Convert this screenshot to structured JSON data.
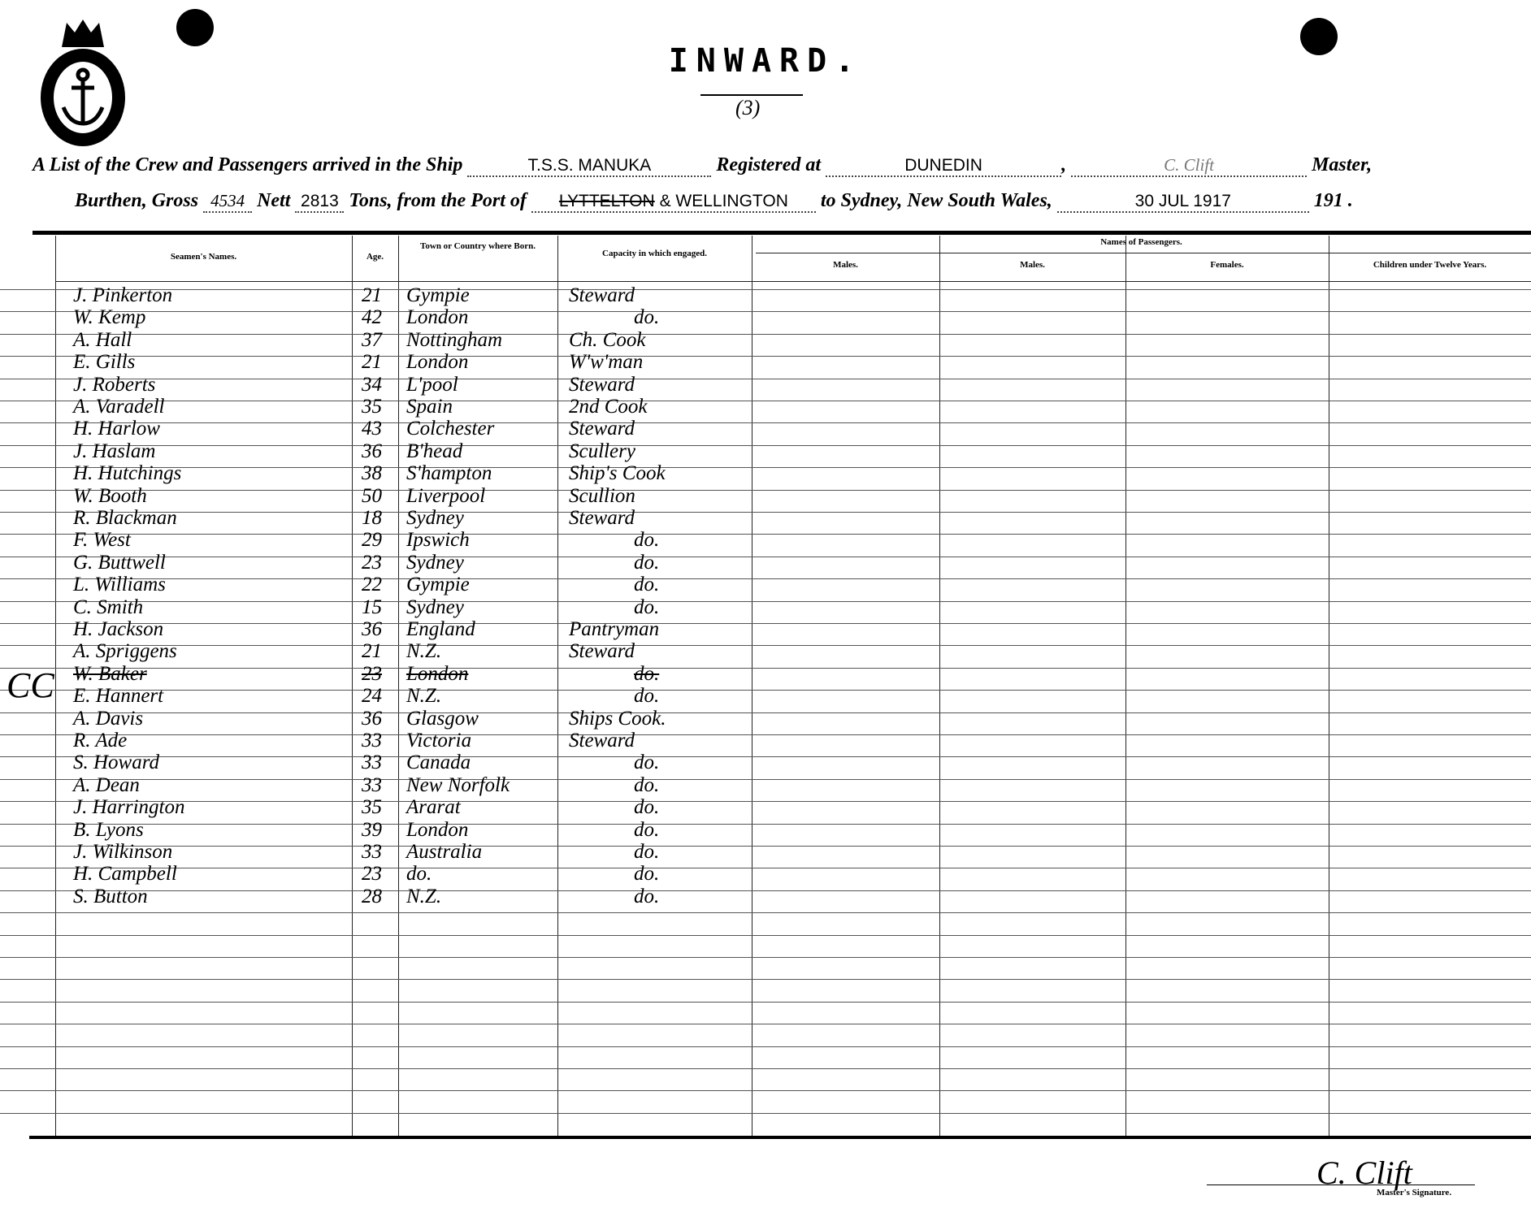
{
  "header": {
    "title": "INWARD.",
    "sheet_number": "(3)",
    "line1_prefix": "A List of the Crew and Passengers arrived in the Ship",
    "ship": "T.S.S. MANUKA",
    "registered_label": "Registered at",
    "registered_at": "DUNEDIN",
    "master_name": "C. Clift",
    "master_label": "Master,",
    "burthen_label": "Burthen, Gross",
    "gross": "4534",
    "nett_label": "Nett",
    "nett": "2813",
    "tons_label": "Tons, from the Port of",
    "port_struck": "LYTTELTON",
    "port": "& WELLINGTON",
    "destination": "to Sydney, New South Wales,",
    "date": "30 JUL 1917",
    "year_prefix": "191",
    "margin_note": "CC"
  },
  "columns": {
    "names": "Seamen's Names.",
    "age": "Age.",
    "born": "Town or Country where Born.",
    "capacity": "Capacity in which engaged.",
    "passengers": "Names of Passengers.",
    "males1": "Males.",
    "males2": "Males.",
    "females": "Females.",
    "children": "Children under Twelve Years."
  },
  "crew": [
    {
      "name": "J. Pinkerton",
      "age": "21",
      "born": "Gympie",
      "capacity": "Steward"
    },
    {
      "name": "W. Kemp",
      "age": "42",
      "born": "London",
      "capacity": "do."
    },
    {
      "name": "A. Hall",
      "age": "37",
      "born": "Nottingham",
      "capacity": "Ch. Cook"
    },
    {
      "name": "E. Gills",
      "age": "21",
      "born": "London",
      "capacity": "W'w'man"
    },
    {
      "name": "J. Roberts",
      "age": "34",
      "born": "L'pool",
      "capacity": "Steward"
    },
    {
      "name": "A. Varadell",
      "age": "35",
      "born": "Spain",
      "capacity": "2nd Cook"
    },
    {
      "name": "H. Harlow",
      "age": "43",
      "born": "Colchester",
      "capacity": "Steward"
    },
    {
      "name": "J. Haslam",
      "age": "36",
      "born": "B'head",
      "capacity": "Scullery"
    },
    {
      "name": "H. Hutchings",
      "age": "38",
      "born": "S'hampton",
      "capacity": "Ship's Cook"
    },
    {
      "name": "W. Booth",
      "age": "50",
      "born": "Liverpool",
      "capacity": "Scullion"
    },
    {
      "name": "R. Blackman",
      "age": "18",
      "born": "Sydney",
      "capacity": "Steward"
    },
    {
      "name": "F. West",
      "age": "29",
      "born": "Ipswich",
      "capacity": "do."
    },
    {
      "name": "G. Buttwell",
      "age": "23",
      "born": "Sydney",
      "capacity": "do."
    },
    {
      "name": "L. Williams",
      "age": "22",
      "born": "Gympie",
      "capacity": "do."
    },
    {
      "name": "C. Smith",
      "age": "15",
      "born": "Sydney",
      "capacity": "do."
    },
    {
      "name": "H. Jackson",
      "age": "36",
      "born": "England",
      "capacity": "Pantryman"
    },
    {
      "name": "A. Spriggens",
      "age": "21",
      "born": "N.Z.",
      "capacity": "Steward"
    },
    {
      "name": "W. Baker",
      "age": "23",
      "born": "London",
      "capacity": "do.",
      "struck": true
    },
    {
      "name": "E. Hannert",
      "age": "24",
      "born": "N.Z.",
      "capacity": "do."
    },
    {
      "name": "A. Davis",
      "age": "36",
      "born": "Glasgow",
      "capacity": "Ships Cook."
    },
    {
      "name": "R. Ade",
      "age": "33",
      "born": "Victoria",
      "capacity": "Steward"
    },
    {
      "name": "S. Howard",
      "age": "33",
      "born": "Canada",
      "capacity": "do."
    },
    {
      "name": "A. Dean",
      "age": "33",
      "born": "New Norfolk",
      "capacity": "do."
    },
    {
      "name": "J. Harrington",
      "age": "35",
      "born": "Ararat",
      "capacity": "do."
    },
    {
      "name": "B. Lyons",
      "age": "39",
      "born": "London",
      "capacity": "do."
    },
    {
      "name": "J. Wilkinson",
      "age": "33",
      "born": "Australia",
      "capacity": "do."
    },
    {
      "name": "H. Campbell",
      "age": "23",
      "born": "do.",
      "capacity": "do."
    },
    {
      "name": "S. Button",
      "age": "28",
      "born": "N.Z.",
      "capacity": "do."
    }
  ],
  "footer": {
    "signature": "C. Clift",
    "signature_label": "Master's Signature."
  }
}
